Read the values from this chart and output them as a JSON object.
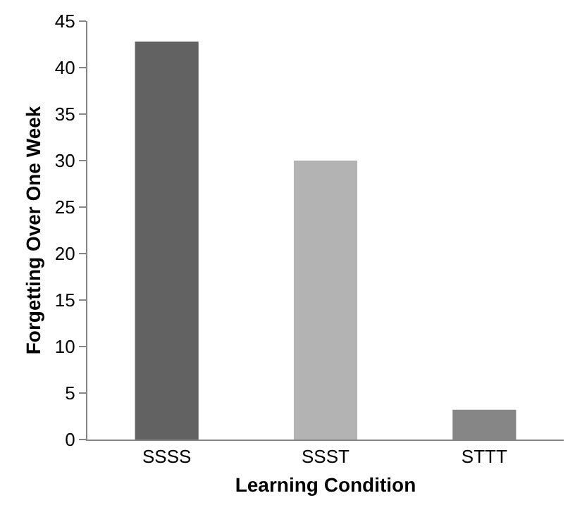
{
  "chart_data": {
    "type": "bar",
    "xlabel": "Learning Condition",
    "ylabel": "Forgetting Over One Week",
    "categories": [
      "SSSS",
      "SSST",
      "STTT"
    ],
    "values": [
      42.8,
      30.0,
      3.2
    ],
    "colors": [
      "#626262",
      "#b3b3b3",
      "#868686"
    ],
    "ylim": [
      0,
      45
    ],
    "yticks": [
      0,
      5,
      10,
      15,
      20,
      25,
      30,
      35,
      40,
      45
    ]
  }
}
